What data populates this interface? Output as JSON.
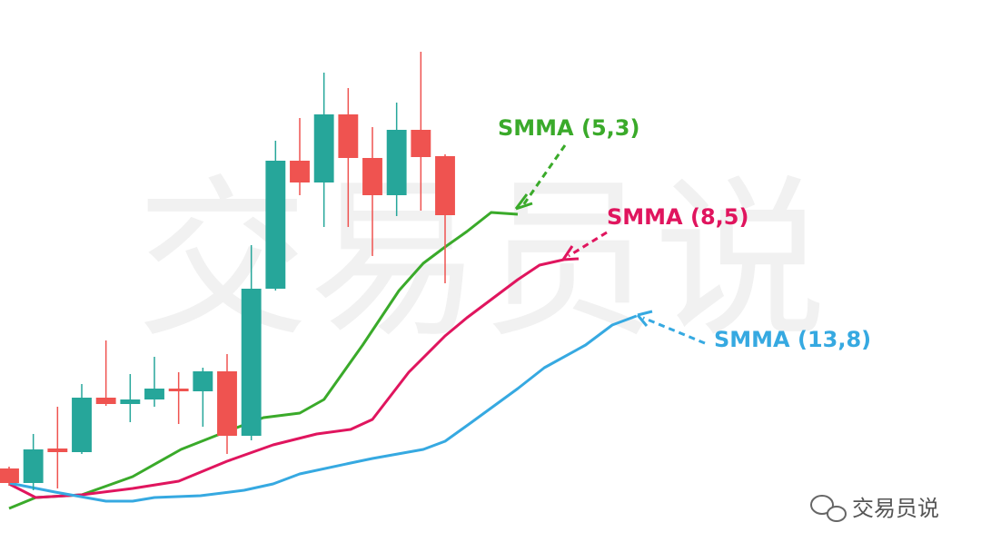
{
  "chart_data": {
    "type": "candlestick",
    "watermark": "交易员说",
    "brand": "交易员说",
    "x": [
      0,
      1,
      2,
      3,
      4,
      5,
      6,
      7,
      8,
      9,
      10,
      11,
      12,
      13,
      14,
      15,
      16,
      17,
      18
    ],
    "open": [
      92,
      76,
      114,
      110,
      170,
      163,
      168,
      180,
      177,
      199,
      128,
      290,
      431,
      407,
      482,
      434,
      393,
      465,
      436
    ],
    "high": [
      94,
      130,
      160,
      185,
      233,
      196,
      215,
      198,
      203,
      218,
      338,
      453,
      478,
      528,
      511,
      468,
      495,
      551,
      438
    ],
    "low": [
      73,
      68,
      70,
      108,
      161,
      143,
      160,
      141,
      138,
      108,
      123,
      288,
      393,
      358,
      358,
      326,
      370,
      376,
      296
    ],
    "close": [
      76,
      113,
      110,
      170,
      163,
      168,
      180,
      177,
      199,
      128,
      290,
      431,
      407,
      482,
      434,
      393,
      465,
      435,
      371
    ],
    "up_color": "#26a69a",
    "down_color": "#ef5350",
    "xlim": [
      -0.375,
      40.125
    ],
    "ylim": [
      0,
      608
    ],
    "series": [
      {
        "name": "SMMA (5,3)",
        "color": "#3aaa2a",
        "x": [
          0,
          1.1,
          3.0,
          5.1,
          7.1,
          9.0,
          10.5,
          12.0,
          13.0,
          14.6,
          16.1,
          17.1,
          18.0,
          18.9,
          19.9,
          21.0
        ],
        "values": [
          48,
          60,
          63,
          83,
          113,
          133,
          148,
          153,
          168,
          228,
          288,
          318,
          336,
          353,
          374,
          372
        ]
      },
      {
        "name": "SMMA (8,5)",
        "color": "#e0155e",
        "x": [
          0,
          1.1,
          3.0,
          5.1,
          7.0,
          9.0,
          10.9,
          12.7,
          14.1,
          15.0,
          16.5,
          18.0,
          18.9,
          19.9,
          21.0,
          21.9,
          22.9
        ],
        "values": [
          75,
          60,
          63,
          70,
          78,
          100,
          118,
          130,
          135,
          146,
          198,
          238,
          258,
          278,
          300,
          316,
          322
        ]
      },
      {
        "name": "SMMA (13,8)",
        "color": "#36a9e1",
        "x": [
          0,
          1.9,
          4.0,
          5.1,
          6.0,
          7.9,
          9.7,
          10.9,
          12.0,
          14.1,
          15.0,
          17.1,
          18.0,
          19.1,
          21.0,
          22.1,
          23.8,
          24.9,
          25.9
        ],
        "values": [
          76,
          66,
          56,
          56,
          60,
          62,
          68,
          75,
          86,
          98,
          103,
          113,
          122,
          143,
          180,
          203,
          228,
          250,
          260
        ]
      }
    ]
  }
}
